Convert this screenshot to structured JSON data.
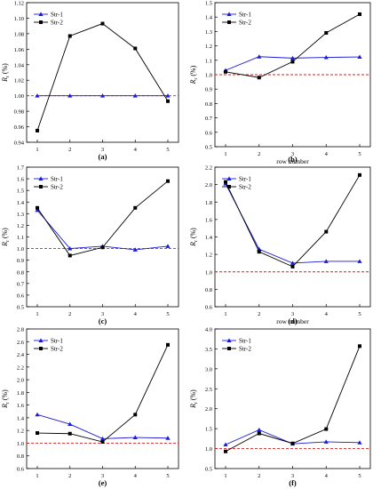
{
  "chart_data": [
    {
      "panel": "(a)",
      "type": "line",
      "x": [
        1,
        2,
        3,
        4,
        5
      ],
      "xlabel": "",
      "ylabel": "Rr (%)",
      "ylim": [
        0.94,
        1.12
      ],
      "yticks": [
        "0.94",
        "0.96",
        "0.98",
        "1.00",
        "1.02",
        "1.04",
        "1.06",
        "1.08",
        "1.10",
        "1.12"
      ],
      "reference": 1.0,
      "series": [
        {
          "name": "Str-1",
          "values": [
            1.0,
            1.0,
            1.0,
            1.0,
            1.0
          ]
        },
        {
          "name": "Str-2",
          "values": [
            0.955,
            1.077,
            1.093,
            1.061,
            0.993
          ]
        }
      ]
    },
    {
      "panel": "(b)",
      "type": "line",
      "x": [
        1,
        2,
        3,
        4,
        5
      ],
      "xlabel": "row number",
      "ylabel": "Rr (%)",
      "ylim": [
        0.5,
        1.5
      ],
      "yticks": [
        "0.5",
        "0.6",
        "0.7",
        "0.8",
        "0.9",
        "1.0",
        "1.1",
        "1.2",
        "1.3",
        "1.4",
        "1.5"
      ],
      "reference": 1.0,
      "series": [
        {
          "name": "Str-1",
          "values": [
            1.03,
            1.125,
            1.115,
            1.12,
            1.123
          ]
        },
        {
          "name": "Str-2",
          "values": [
            1.02,
            0.98,
            1.09,
            1.29,
            1.42
          ]
        }
      ]
    },
    {
      "panel": "(c)",
      "type": "line",
      "x": [
        1,
        2,
        3,
        4,
        5
      ],
      "xlabel": "",
      "ylabel": "Rr (%)",
      "ylim": [
        0.5,
        1.7
      ],
      "yticks": [
        "0.5",
        "0.6",
        "0.7",
        "0.8",
        "0.9",
        "1.0",
        "1.1",
        "1.2",
        "1.3",
        "1.4",
        "1.5",
        "1.6",
        "1.7"
      ],
      "reference": 1.0,
      "series": [
        {
          "name": "Str-1",
          "values": [
            1.33,
            1.0,
            1.02,
            0.99,
            1.02
          ]
        },
        {
          "name": "Str-2",
          "values": [
            1.35,
            0.94,
            1.01,
            1.35,
            1.58
          ]
        }
      ]
    },
    {
      "panel": "(d)",
      "type": "line",
      "x": [
        1,
        2,
        3,
        4,
        5
      ],
      "xlabel": "row number",
      "ylabel": "Rr (%)",
      "ylim": [
        0.6,
        2.2
      ],
      "yticks": [
        "0.6",
        "0.8",
        "1.0",
        "1.2",
        "1.4",
        "1.6",
        "1.8",
        "2.0",
        "2.2"
      ],
      "reference": 1.0,
      "series": [
        {
          "name": "Str-1",
          "values": [
            2.01,
            1.26,
            1.1,
            1.12,
            1.12
          ]
        },
        {
          "name": "Str-2",
          "values": [
            2.03,
            1.23,
            1.06,
            1.46,
            2.11
          ]
        }
      ]
    },
    {
      "panel": "(e)",
      "type": "line",
      "x": [
        1,
        2,
        3,
        4,
        5
      ],
      "xlabel": "",
      "ylabel": "Rr (%)",
      "ylim": [
        0.6,
        2.8
      ],
      "yticks": [
        "0.6",
        "0.8",
        "1.0",
        "1.2",
        "1.4",
        "1.6",
        "1.8",
        "2.0",
        "2.2",
        "2.4",
        "2.6",
        "2.8"
      ],
      "reference": 1.0,
      "series": [
        {
          "name": "Str-1",
          "values": [
            1.45,
            1.3,
            1.07,
            1.09,
            1.08
          ]
        },
        {
          "name": "Str-2",
          "values": [
            1.16,
            1.15,
            1.02,
            1.45,
            2.55
          ]
        }
      ]
    },
    {
      "panel": "(f)",
      "type": "line",
      "x": [
        1,
        2,
        3,
        4,
        5
      ],
      "xlabel": "",
      "ylabel": "Rr (%)",
      "ylim": [
        0.5,
        4.0
      ],
      "yticks": [
        "0.5",
        "1.0",
        "1.5",
        "2.0",
        "2.5",
        "3.0",
        "3.5",
        "4.0"
      ],
      "reference": 1.0,
      "series": [
        {
          "name": "Str-1",
          "values": [
            1.1,
            1.47,
            1.12,
            1.17,
            1.15
          ]
        },
        {
          "name": "Str-2",
          "values": [
            0.93,
            1.38,
            1.13,
            1.49,
            3.57
          ]
        }
      ]
    }
  ],
  "colors": {
    "str1": "#1a1adb",
    "str2": "#000000",
    "reference": "#d62020",
    "axis": "#000000"
  }
}
